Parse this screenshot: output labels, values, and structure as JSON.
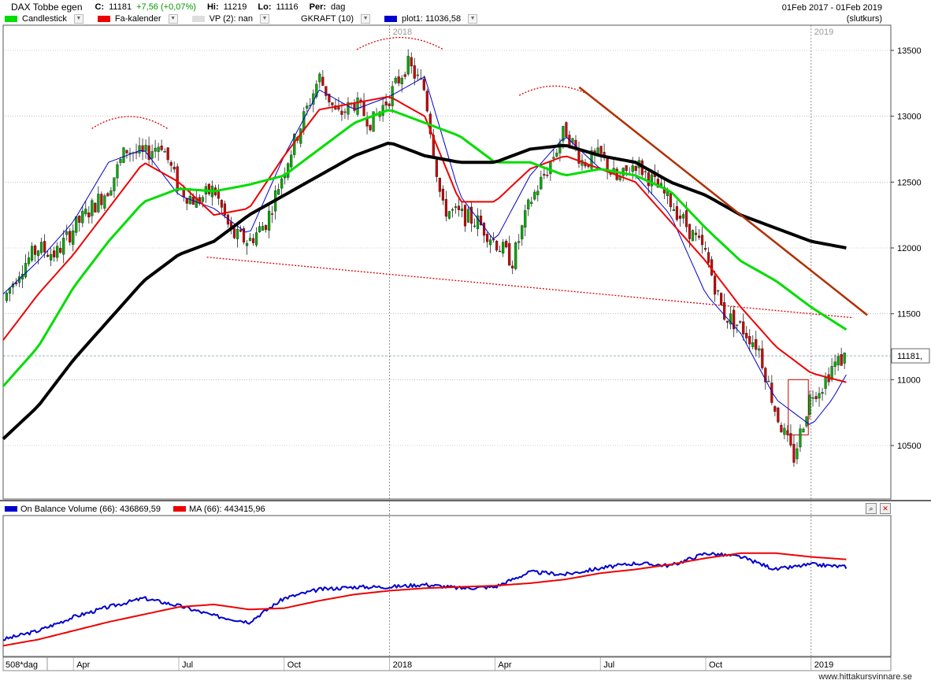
{
  "header": {
    "title": "DAX Tobbe egen",
    "close_label": "C:",
    "close_value": "11181",
    "change": "+7,56 (+0,07%)",
    "high_label": "Hi:",
    "high_value": "11219",
    "low_label": "Lo:",
    "low_value": "11116",
    "period_label": "Per:",
    "period_value": "dag",
    "date_range": "01Feb 2017 - 01Feb 2019",
    "price_basis": "(slutkurs)",
    "legend": [
      {
        "label": "Candlestick",
        "color": "#00dd00"
      },
      {
        "label": "Fa-kalender",
        "color": "#ee0000"
      },
      {
        "label": "VP (2): nan",
        "color": "#dddddd"
      },
      {
        "label": "GKRAFT (10)",
        "color": ""
      },
      {
        "label": "plot1: 11036,58",
        "color": "#0000cc"
      }
    ]
  },
  "obv_legend": [
    {
      "label": "On Balance Volume (66): 436869,59",
      "color": "#0000cc"
    },
    {
      "label": "MA (66): 443415,96",
      "color": "#ee0000"
    }
  ],
  "last_price_tag": "11181,",
  "year_markers": [
    "2018",
    "2019"
  ],
  "footer": {
    "period_box": "508*dag",
    "site": "www.hittakursvinnare.se"
  },
  "colors": {
    "candle_up": "#00aa00",
    "candle_down": "#cc0000",
    "ma_short": "#ee0000",
    "ma_mid": "#00dd00",
    "ma_long": "#000000",
    "plot1": "#0000cc",
    "trendline": "#b03000",
    "support": "#dd0000"
  },
  "chart_data": [
    {
      "type": "line",
      "title": "DAX Tobbe egen",
      "x_ticks": [
        "Apr",
        "Jul",
        "Oct",
        "2018",
        "Apr",
        "Jul",
        "Oct",
        "2019"
      ],
      "x_tick_months": [
        2,
        5,
        8,
        11,
        14,
        17,
        20,
        23
      ],
      "y_ticks": [
        13500,
        13000,
        12500,
        12000,
        11500,
        11000,
        10500
      ],
      "ylim": [
        10200,
        13700
      ],
      "xlim_months": [
        0,
        25.6
      ],
      "last_close": 11181,
      "series": [
        {
          "name": "Candlestick",
          "x_months": [
            0,
            0.5,
            1,
            1.5,
            2,
            2.5,
            3,
            3.5,
            4,
            4.5,
            5,
            5.5,
            6,
            6.5,
            7,
            7.5,
            8,
            8.5,
            9,
            9.5,
            10,
            10.5,
            11,
            11.5,
            12,
            12.5,
            13,
            13.5,
            14,
            14.5,
            15,
            15.5,
            16,
            16.5,
            17,
            17.5,
            18,
            18.5,
            19,
            19.5,
            20,
            20.5,
            21,
            21.5,
            22,
            22.5,
            23,
            23.3,
            23.6,
            24
          ],
          "values": [
            11600,
            11850,
            12000,
            11950,
            12150,
            12300,
            12450,
            12750,
            12700,
            12800,
            12450,
            12350,
            12450,
            12100,
            12050,
            12200,
            12600,
            12950,
            13300,
            13000,
            13100,
            12950,
            13150,
            13400,
            13200,
            12300,
            12250,
            12200,
            12050,
            11900,
            12350,
            12600,
            12900,
            12650,
            12700,
            12500,
            12650,
            12500,
            12350,
            12150,
            11950,
            11500,
            11400,
            11250,
            10750,
            10400,
            10900,
            10950,
            11100,
            11181
          ]
        },
        {
          "name": "plot1",
          "x_months": [
            0,
            1,
            2,
            3,
            4,
            5,
            6,
            7,
            8,
            9,
            10,
            11,
            12,
            13,
            14,
            15,
            16,
            17,
            18,
            19,
            20,
            21,
            22,
            23,
            23.6,
            24
          ],
          "values": [
            11650,
            11900,
            12200,
            12650,
            12750,
            12400,
            12300,
            12100,
            12700,
            13200,
            13050,
            13150,
            13300,
            12400,
            12050,
            12550,
            12850,
            12600,
            12550,
            12250,
            11650,
            11350,
            10850,
            10650,
            10850,
            11037
          ]
        },
        {
          "name": "Fa-kalender",
          "x_months": [
            0,
            1,
            2,
            3,
            4,
            5,
            6,
            7,
            8,
            9,
            10,
            11,
            12,
            13,
            14,
            15,
            16,
            17,
            18,
            19,
            20,
            21,
            22,
            23,
            24
          ],
          "values": [
            11300,
            11650,
            11950,
            12300,
            12650,
            12500,
            12250,
            12300,
            12700,
            13050,
            13100,
            13150,
            13000,
            12350,
            12350,
            12600,
            12700,
            12600,
            12500,
            12200,
            11900,
            11550,
            11250,
            11050,
            10980
          ]
        },
        {
          "name": "Candlestick MA",
          "x_months": [
            0,
            1,
            2,
            3,
            4,
            5,
            6,
            7,
            8,
            9,
            10,
            11,
            12,
            13,
            14,
            15,
            16,
            17,
            18,
            19,
            20,
            21,
            22,
            23,
            24
          ],
          "values": [
            10950,
            11250,
            11700,
            12050,
            12350,
            12450,
            12430,
            12480,
            12550,
            12750,
            12950,
            13050,
            12950,
            12850,
            12650,
            12650,
            12550,
            12600,
            12550,
            12430,
            12150,
            11900,
            11750,
            11550,
            11380
          ]
        },
        {
          "name": "Long MA",
          "x_months": [
            0,
            1,
            2,
            3,
            4,
            5,
            6,
            7,
            8,
            9,
            10,
            11,
            12,
            13,
            14,
            15,
            16,
            17,
            18,
            19,
            20,
            21,
            22,
            23,
            24
          ],
          "values": [
            10550,
            10800,
            11150,
            11450,
            11750,
            11950,
            12050,
            12250,
            12400,
            12550,
            12700,
            12800,
            12700,
            12650,
            12650,
            12750,
            12780,
            12700,
            12650,
            12500,
            12400,
            12250,
            12150,
            12050,
            12000
          ]
        }
      ]
    },
    {
      "type": "line",
      "x_ticks": [
        "Apr",
        "Jul",
        "Oct",
        "2018",
        "Apr",
        "Jul",
        "Oct",
        "2019"
      ],
      "series": [
        {
          "name": "On Balance Volume (66)",
          "x_months": [
            0,
            1,
            2,
            3,
            4,
            5,
            6,
            7,
            8,
            9,
            10,
            11,
            12,
            13,
            14,
            15,
            16,
            17,
            18,
            19,
            20,
            21,
            22,
            23,
            24
          ],
          "values": [
            0.06,
            0.13,
            0.24,
            0.32,
            0.39,
            0.33,
            0.25,
            0.2,
            0.39,
            0.46,
            0.48,
            0.48,
            0.5,
            0.47,
            0.48,
            0.6,
            0.58,
            0.63,
            0.67,
            0.65,
            0.75,
            0.72,
            0.62,
            0.66,
            0.64
          ]
        },
        {
          "name": "MA (66)",
          "x_months": [
            0,
            1,
            2,
            3,
            4,
            5,
            6,
            7,
            8,
            9,
            10,
            11,
            12,
            13,
            14,
            15,
            16,
            17,
            18,
            19,
            20,
            21,
            22,
            23,
            24
          ],
          "values": [
            0.01,
            0.06,
            0.13,
            0.2,
            0.26,
            0.32,
            0.34,
            0.3,
            0.31,
            0.37,
            0.42,
            0.45,
            0.47,
            0.48,
            0.49,
            0.51,
            0.54,
            0.59,
            0.62,
            0.66,
            0.71,
            0.75,
            0.75,
            0.72,
            0.7
          ]
        }
      ]
    }
  ]
}
